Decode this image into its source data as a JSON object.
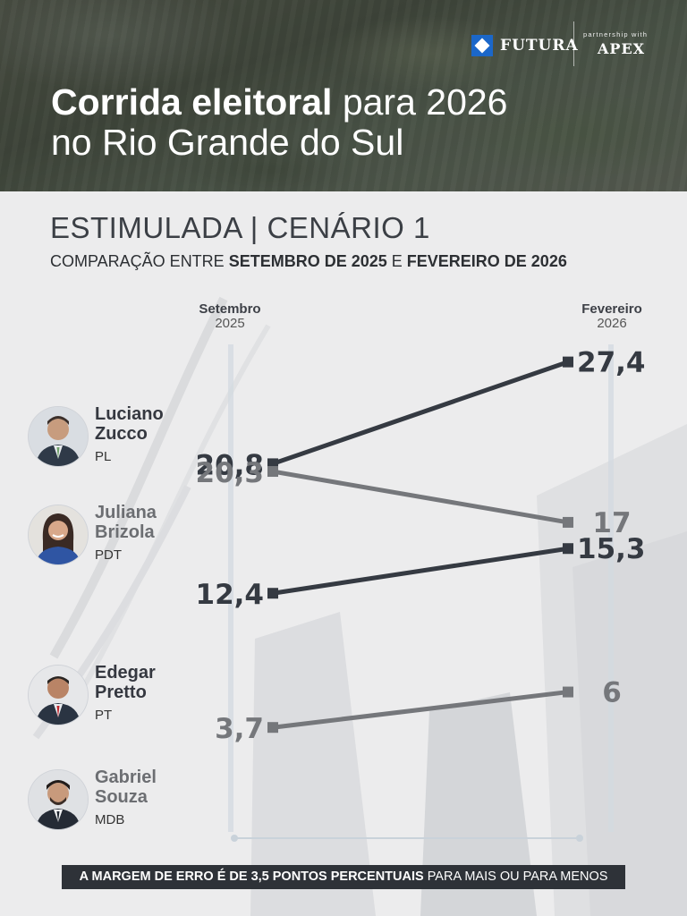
{
  "brand": {
    "name": "FUTURA",
    "partner_label": "partnership with",
    "partner_name": "APEX"
  },
  "header": {
    "title_bold": "Corrida eleitoral",
    "title_rest": " para 2026",
    "title_line2": "no Rio Grande do Sul"
  },
  "subtitle": "ESTIMULADA | CENÁRIO 1",
  "comparison": {
    "prefix": "COMPARAÇÃO ENTRE ",
    "from": "SETEMBRO DE 2025",
    "joiner": " E ",
    "to": "FEVEREIRO DE 2026"
  },
  "footer": {
    "bold": "A MARGEM DE ERRO É DE 3,5 PONTOS PERCENTUAIS",
    "rest": " PARA MAIS OU PARA MENOS"
  },
  "colors": {
    "dark": "#353a42",
    "gray": "#75777b",
    "axis": "#d3dae0",
    "header_bg": "#4f5649",
    "footer_bg": "#2e3238",
    "logo_blue": "#1b67c9"
  },
  "chart_data": {
    "type": "line",
    "x": [
      "Setembro 2025",
      "Fevereiro 2026"
    ],
    "x_labels": [
      {
        "line1": "Setembro",
        "line2": "2025"
      },
      {
        "line1": "Fevereiro",
        "line2": "2026"
      }
    ],
    "series": [
      {
        "name": "Luciano Zucco",
        "line1": "Luciano",
        "line2": "Zucco",
        "party": "PL",
        "values": [
          20.8,
          27.4
        ],
        "labels": [
          "20,8",
          "27,4"
        ],
        "style": "dark"
      },
      {
        "name": "Juliana Brizola",
        "line1": "Juliana",
        "line2": "Brizola",
        "party": "PDT",
        "values": [
          20.3,
          17
        ],
        "labels": [
          "20,3",
          "17"
        ],
        "style": "gray"
      },
      {
        "name": "Edegar Pretto",
        "line1": "Edegar",
        "line2": "Pretto",
        "party": "PT",
        "values": [
          12.4,
          15.3
        ],
        "labels": [
          "12,4",
          "15,3"
        ],
        "style": "dark"
      },
      {
        "name": "Gabriel Souza",
        "line1": "Gabriel",
        "line2": "Souza",
        "party": "MDB",
        "values": [
          3.7,
          6
        ],
        "labels": [
          "3,7",
          "6"
        ],
        "style": "gray"
      }
    ]
  }
}
